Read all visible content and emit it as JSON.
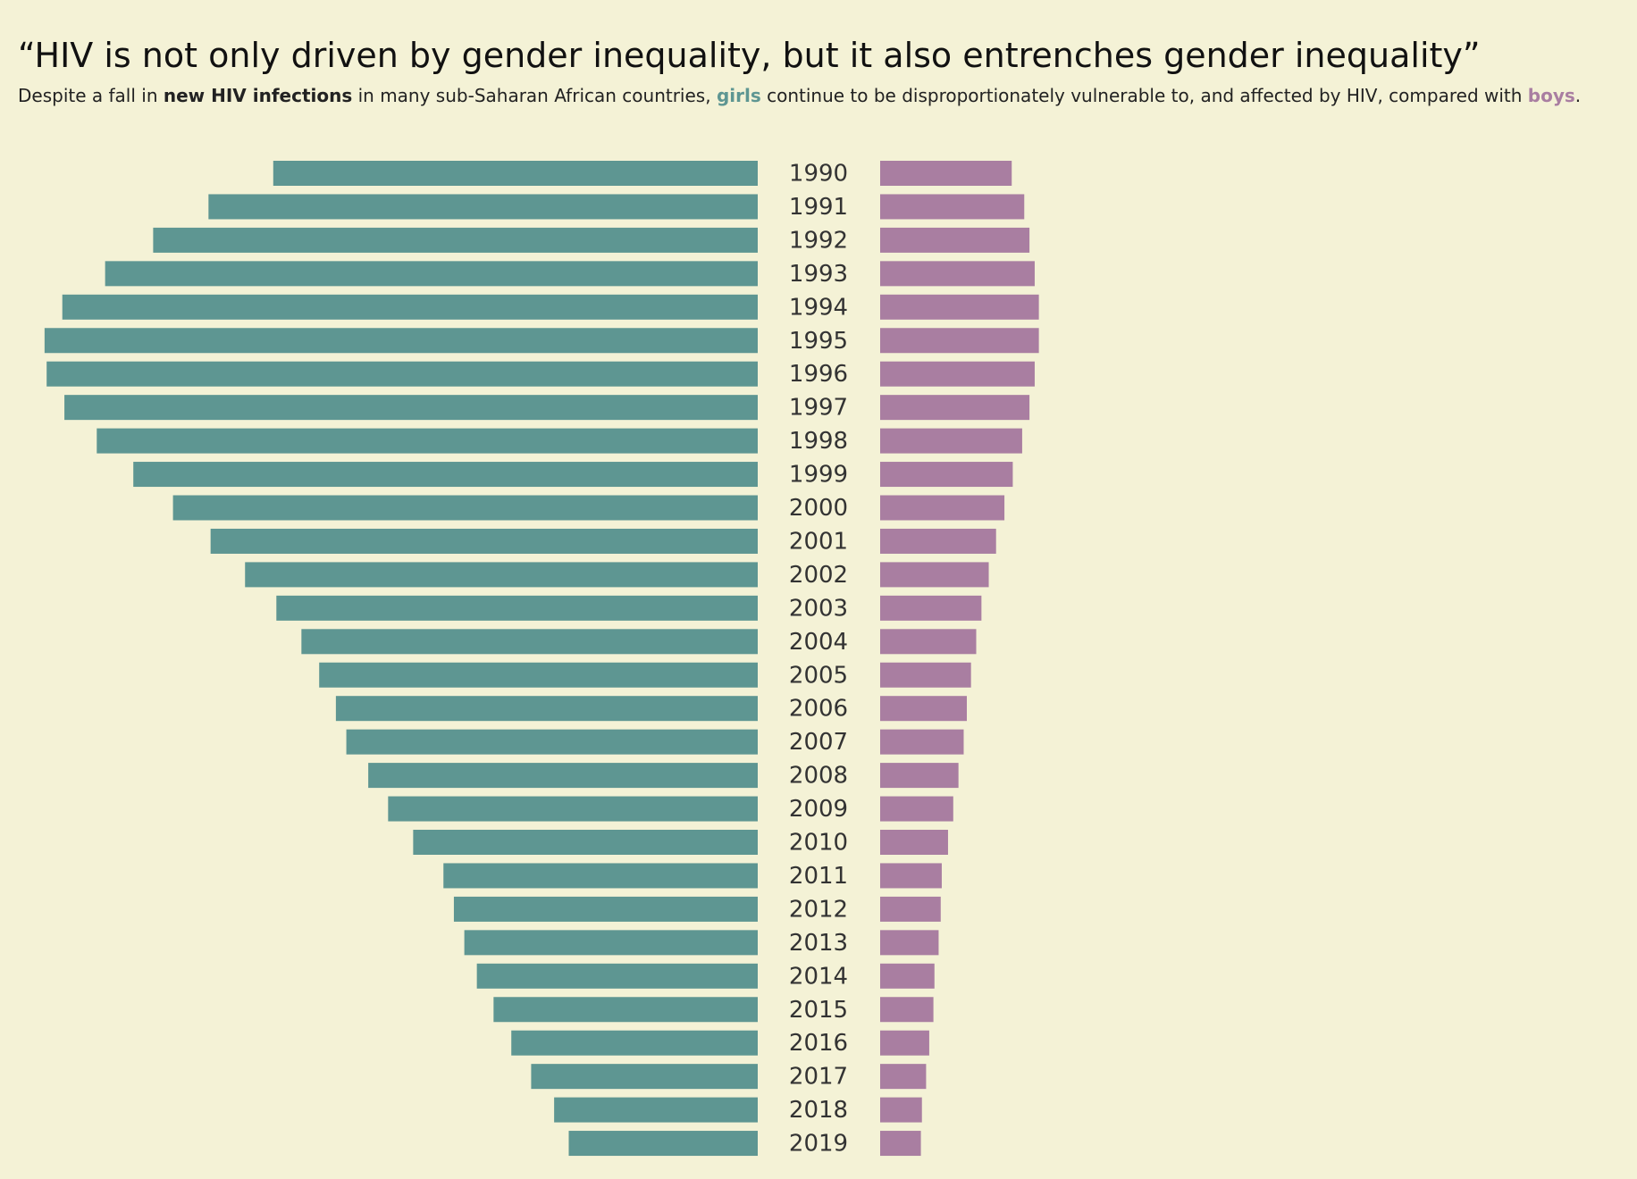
{
  "chart_data": {
    "type": "butterfly",
    "title": "“HIV is not only driven by gender inequality, but it also entrenches gender inequality”",
    "subtitle_parts": [
      "Despite a fall in ",
      "new HIV infections",
      " in many sub-Saharan African countries, ",
      " continue to be disproportionately vulnerable to, and affected by HIV, compared with ",
      "."
    ],
    "categories": [
      "1990",
      "1991",
      "1992",
      "1993",
      "1994",
      "1995",
      "1996",
      "1997",
      "1998",
      "1999",
      "2000",
      "2001",
      "2002",
      "2003",
      "2004",
      "2005",
      "2006",
      "2007",
      "2008",
      "2009",
      "2010",
      "2011",
      "2012",
      "2013",
      "2014",
      "2015",
      "2016",
      "2017",
      "2018",
      "2019"
    ],
    "xlim": [
      0,
      700
    ],
    "series": [
      {
        "name": "girls",
        "color": "#5e9692",
        "values": [
          464,
          526,
          579,
          625,
          666,
          683,
          681,
          664,
          633,
          598,
          560,
          524,
          491,
          461,
          437,
          420,
          404,
          394,
          373,
          354,
          330,
          301,
          291,
          281,
          269,
          253,
          236,
          217,
          195,
          181
        ]
      },
      {
        "name": "boys",
        "color": "#a97ea1",
        "values": [
          126,
          138,
          143,
          148,
          152,
          152,
          148,
          143,
          136,
          127,
          119,
          111,
          104,
          97,
          92,
          87,
          83,
          80,
          75,
          70,
          65,
          59,
          58,
          56,
          52,
          51,
          47,
          44,
          40,
          39
        ]
      }
    ]
  }
}
